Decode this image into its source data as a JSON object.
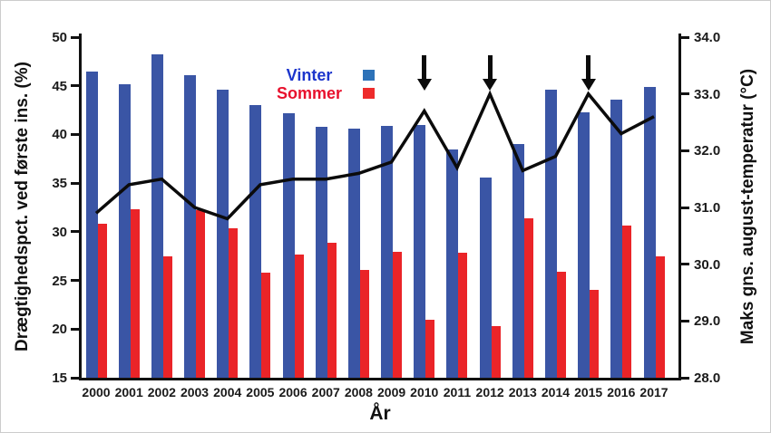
{
  "chart_data": {
    "type": "bar",
    "note": "combo chart: two bar series on left axis + one line series on right axis",
    "categories": [
      "2000",
      "2001",
      "2002",
      "2003",
      "2004",
      "2005",
      "2006",
      "2007",
      "2008",
      "2009",
      "2010",
      "2011",
      "2012",
      "2013",
      "2014",
      "2015",
      "2016",
      "2017"
    ],
    "series": [
      {
        "name": "Vinter",
        "kind": "bar",
        "axis": "left",
        "color": "#3a55a5",
        "values": [
          46.5,
          45.2,
          48.2,
          46.1,
          44.6,
          43.0,
          42.2,
          40.8,
          40.6,
          40.9,
          41.0,
          38.5,
          35.6,
          39.0,
          44.6,
          42.3,
          43.6,
          44.9
        ]
      },
      {
        "name": "Sommer",
        "kind": "bar",
        "axis": "left",
        "color": "#ea2428",
        "values": [
          30.8,
          32.3,
          27.5,
          32.2,
          30.4,
          25.8,
          27.7,
          28.9,
          26.1,
          27.9,
          21.0,
          27.8,
          20.3,
          31.4,
          25.9,
          24.0,
          30.6,
          27.5
        ]
      },
      {
        "name": "Maks gns. august-temperatur",
        "kind": "line",
        "axis": "right",
        "color": "#0b0b0b",
        "values": [
          30.9,
          31.4,
          31.5,
          31.0,
          30.8,
          31.4,
          31.5,
          31.5,
          31.6,
          31.8,
          32.7,
          31.7,
          33.0,
          31.65,
          31.9,
          33.0,
          32.3,
          32.6
        ]
      }
    ],
    "left_axis": {
      "label": "Drægtighedspct. ved første ins. (%)",
      "min": 15,
      "max": 50,
      "tick_step": 5,
      "tick_labels": [
        "15",
        "20",
        "25",
        "30",
        "35",
        "40",
        "45",
        "50"
      ]
    },
    "right_axis": {
      "label": "Maks gns. august-temperatur (°C)",
      "min": 28.0,
      "max": 34.0,
      "tick_step": 1.0,
      "tick_labels": [
        "28.0",
        "29.0",
        "30.0",
        "31.0",
        "32.0",
        "33.0",
        "34.0"
      ]
    },
    "xlabel": "År",
    "grid": false,
    "legend": {
      "position": "inside-top-center",
      "items": [
        {
          "label": "Vinter",
          "text_color": "#1c35cc",
          "swatch_color": "#2d72b8"
        },
        {
          "label": "Sommer",
          "text_color": "#e8112d",
          "swatch_color": "#ee2b2b"
        }
      ]
    },
    "annotations": {
      "down_arrows_at_categories": [
        "2010",
        "2012",
        "2015"
      ],
      "arrow_color": "#0b0b0b"
    }
  }
}
